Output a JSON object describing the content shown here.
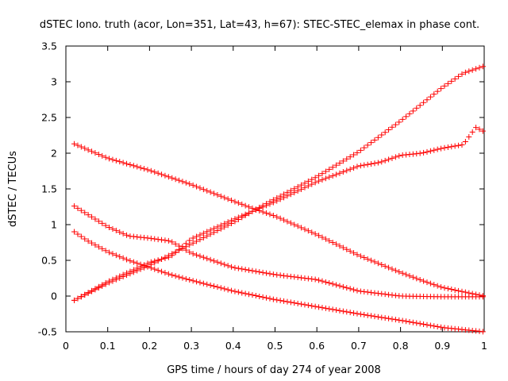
{
  "chart_data": {
    "type": "scatter",
    "title": "dSTEC Iono. truth (acor, Lon=351, Lat=43, h=67): STEC-STEC_elemax in phase cont.",
    "xlabel": "GPS time / hours of day 274 of year 2008",
    "ylabel": "dSTEC  / TECUs",
    "xlim": [
      0,
      1
    ],
    "ylim": [
      -0.5,
      3.5
    ],
    "x_ticks": [
      "0",
      "0.1",
      "0.2",
      "0.3",
      "0.4",
      "0.5",
      "0.6",
      "0.7",
      "0.8",
      "0.9",
      "1"
    ],
    "y_ticks": [
      "-0.5",
      "0",
      "0.5",
      "1",
      "1.5",
      "2",
      "2.5",
      "3",
      "3.5"
    ],
    "grid": false,
    "legend": "none",
    "marker": "plus",
    "color": "#ff0000",
    "series": [
      {
        "x": [
          0.02,
          0.1,
          0.2,
          0.3,
          0.4,
          0.45,
          0.5,
          0.6,
          0.7,
          0.8,
          0.85,
          0.9,
          0.95,
          1.0
        ],
        "y": [
          2.13,
          1.93,
          1.76,
          1.56,
          1.33,
          1.22,
          1.12,
          0.86,
          0.57,
          0.33,
          0.22,
          0.12,
          0.06,
          0.0
        ]
      },
      {
        "x": [
          0.02,
          0.05,
          0.1,
          0.15,
          0.2,
          0.25,
          0.3,
          0.4,
          0.5,
          0.6,
          0.7,
          0.8,
          0.9,
          1.0
        ],
        "y": [
          1.26,
          1.15,
          0.97,
          0.84,
          0.81,
          0.77,
          0.6,
          0.4,
          0.3,
          0.23,
          0.07,
          0.0,
          -0.01,
          -0.01
        ]
      },
      {
        "x": [
          0.02,
          0.05,
          0.1,
          0.15,
          0.2,
          0.25,
          0.3,
          0.4,
          0.5,
          0.6,
          0.7,
          0.8,
          0.9,
          1.0
        ],
        "y": [
          0.9,
          0.78,
          0.62,
          0.5,
          0.4,
          0.3,
          0.22,
          0.07,
          -0.05,
          -0.15,
          -0.25,
          -0.34,
          -0.44,
          -0.5
        ]
      },
      {
        "x": [
          0.02,
          0.1,
          0.2,
          0.25,
          0.3,
          0.4,
          0.45,
          0.5,
          0.6,
          0.7,
          0.8,
          0.9,
          0.95,
          1.0
        ],
        "y": [
          -0.06,
          0.18,
          0.43,
          0.58,
          0.73,
          1.03,
          1.2,
          1.36,
          1.67,
          2.02,
          2.45,
          2.92,
          3.12,
          3.22
        ]
      },
      {
        "x": [
          0.02,
          0.1,
          0.2,
          0.25,
          0.3,
          0.4,
          0.5,
          0.6,
          0.7,
          0.75,
          0.8,
          0.85,
          0.9,
          0.95,
          0.98,
          1.0
        ],
        "y": [
          -0.06,
          0.2,
          0.47,
          0.55,
          0.8,
          1.07,
          1.32,
          1.6,
          1.82,
          1.87,
          1.97,
          2.0,
          2.07,
          2.12,
          2.36,
          2.3
        ]
      }
    ]
  }
}
